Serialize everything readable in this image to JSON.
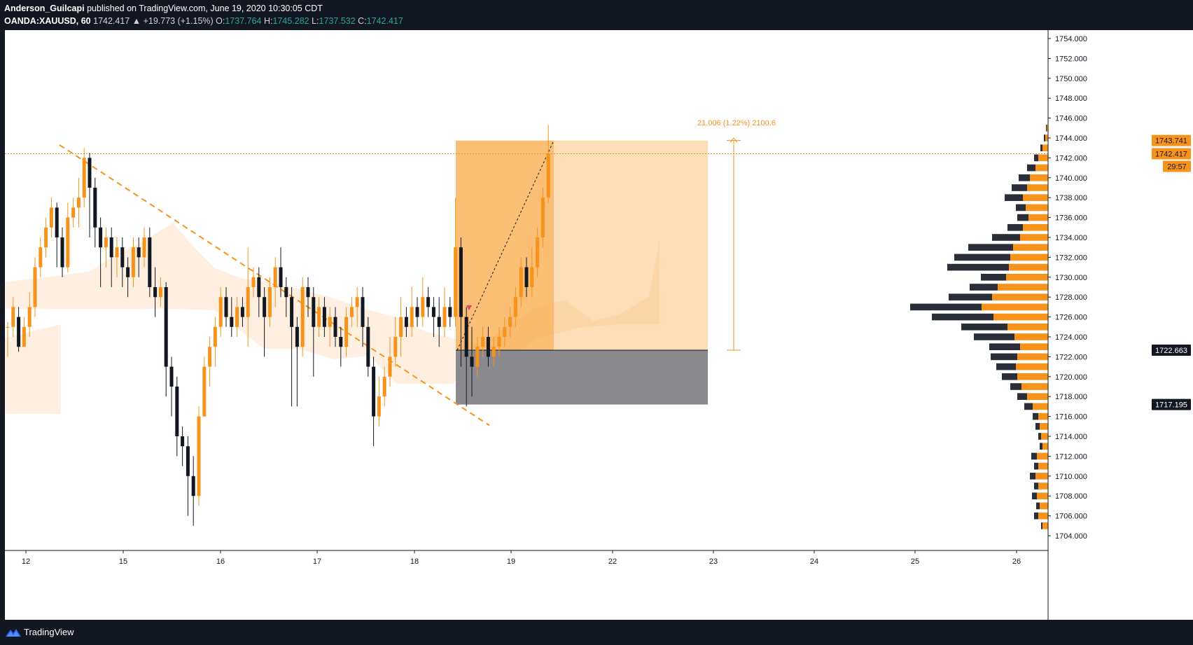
{
  "header": {
    "author": "Anderson_Guilcapi",
    "published_text": "published on TradingView.com, June 19, 2020 10:30:05 CDT",
    "symbol": "OANDA:XAUUSD, 60",
    "last": "1742.417",
    "change": "▲ +19.773 (+1.15%)",
    "o_label": "O:",
    "o_val": "1737.764",
    "h_label": "H:",
    "h_val": "1745.282",
    "l_label": "L:",
    "l_val": "1737.532",
    "c_label": "C:",
    "c_val": "1742.417"
  },
  "footer": {
    "brand": "TradingView"
  },
  "colors": {
    "up": "#f7931a",
    "down": "#131722",
    "accent": "#f7931a",
    "profile_up": "#f7931a",
    "profile_down": "#2a2e39",
    "stop_zone": "#8a8a8e",
    "target_zone": "#fbb660",
    "cloud": "#fde9d6"
  },
  "annotations": {
    "measure_text": "21.006 (1.22%) 2100.6",
    "price_tags": [
      {
        "text": "1743.741",
        "style": "orange"
      },
      {
        "text": "1742.417",
        "style": "orange"
      },
      {
        "text": "29:57",
        "style": "orange"
      },
      {
        "text": "1722.663",
        "style": "dark"
      },
      {
        "text": "1717.195",
        "style": "dark"
      }
    ]
  },
  "chart_data": {
    "type": "candlestick",
    "symbol": "OANDA:XAUUSD",
    "interval": "60",
    "y_range": [
      1703,
      1755
    ],
    "y_ticks": [
      "1704.000",
      "1706.000",
      "1708.000",
      "1710.000",
      "1712.000",
      "1714.000",
      "1716.000",
      "1718.000",
      "1720.000",
      "1722.000",
      "1724.000",
      "1726.000",
      "1728.000",
      "1730.000",
      "1732.000",
      "1734.000",
      "1736.000",
      "1738.000",
      "1740.000",
      "1742.000",
      "1744.000",
      "1746.000",
      "1748.000",
      "1750.000",
      "1752.000",
      "1754.000"
    ],
    "x_ticks": [
      "12",
      "15",
      "16",
      "17",
      "18",
      "19",
      "22",
      "23",
      "24",
      "25",
      "26"
    ],
    "candles": [
      [
        1725,
        1725,
        1725.5,
        1722
      ],
      [
        1725,
        1727,
        1728,
        1724
      ],
      [
        1726,
        1723,
        1727,
        1722.5
      ],
      [
        1723,
        1725,
        1726,
        1723
      ],
      [
        1725,
        1727,
        1728.5,
        1724
      ],
      [
        1727,
        1731,
        1732,
        1726
      ],
      [
        1731,
        1733,
        1734,
        1730
      ],
      [
        1733,
        1735,
        1736,
        1732
      ],
      [
        1735,
        1737,
        1738,
        1734
      ],
      [
        1737,
        1734,
        1737.5,
        1731
      ],
      [
        1734,
        1731,
        1735,
        1730
      ],
      [
        1731,
        1736,
        1737.5,
        1730.5
      ],
      [
        1736,
        1737,
        1738,
        1735
      ],
      [
        1737,
        1738,
        1740,
        1735
      ],
      [
        1738,
        1742,
        1743,
        1737
      ],
      [
        1742,
        1739,
        1742.5,
        1734
      ],
      [
        1739,
        1735,
        1740,
        1733
      ],
      [
        1735,
        1733,
        1736,
        1729
      ],
      [
        1733,
        1734,
        1735,
        1731
      ],
      [
        1734,
        1732,
        1735,
        1729
      ],
      [
        1732,
        1733,
        1734,
        1730
      ],
      [
        1733,
        1731,
        1734,
        1729
      ],
      [
        1731,
        1730,
        1732,
        1728
      ],
      [
        1730,
        1733,
        1734,
        1729
      ],
      [
        1733,
        1732,
        1734,
        1730
      ],
      [
        1732,
        1734,
        1735,
        1731
      ],
      [
        1734,
        1729,
        1735,
        1728
      ],
      [
        1729,
        1728,
        1731,
        1726
      ],
      [
        1728,
        1729,
        1730,
        1727
      ],
      [
        1729,
        1721,
        1729.5,
        1718
      ],
      [
        1721,
        1719,
        1722,
        1716
      ],
      [
        1719,
        1714,
        1720,
        1712
      ],
      [
        1714,
        1713,
        1715,
        1711
      ],
      [
        1713,
        1710,
        1714,
        1706
      ],
      [
        1710,
        1708,
        1712,
        1705
      ],
      [
        1708,
        1716,
        1717,
        1707
      ],
      [
        1716,
        1721,
        1722,
        1716
      ],
      [
        1721,
        1723,
        1724,
        1719
      ],
      [
        1723,
        1725,
        1726,
        1721
      ],
      [
        1725,
        1728,
        1729,
        1724
      ],
      [
        1728,
        1726,
        1729,
        1725
      ],
      [
        1726,
        1725,
        1728,
        1724
      ],
      [
        1725,
        1727,
        1728,
        1724
      ],
      [
        1727,
        1726,
        1728,
        1725
      ],
      [
        1726,
        1729,
        1733,
        1723
      ],
      [
        1729,
        1730,
        1731,
        1728
      ],
      [
        1730,
        1728,
        1731,
        1726
      ],
      [
        1728,
        1726,
        1729,
        1722
      ],
      [
        1726,
        1729,
        1730,
        1725
      ],
      [
        1729,
        1731,
        1732,
        1727
      ],
      [
        1731,
        1729,
        1733,
        1728
      ],
      [
        1729,
        1728,
        1730,
        1726
      ],
      [
        1728,
        1725,
        1729,
        1717
      ],
      [
        1725,
        1723,
        1726,
        1717
      ],
      [
        1723,
        1729,
        1730,
        1722
      ],
      [
        1729,
        1728,
        1730,
        1726
      ],
      [
        1728,
        1725,
        1729,
        1720
      ],
      [
        1725,
        1727,
        1728,
        1724
      ],
      [
        1727,
        1725,
        1728,
        1724
      ],
      [
        1725,
        1726,
        1727,
        1723
      ],
      [
        1726,
        1724,
        1727,
        1723
      ],
      [
        1724,
        1723,
        1725,
        1721
      ],
      [
        1723,
        1726,
        1727,
        1722
      ],
      [
        1726,
        1727,
        1728,
        1725
      ],
      [
        1727,
        1728,
        1729,
        1725
      ],
      [
        1728,
        1725,
        1729,
        1723
      ],
      [
        1725,
        1721,
        1726,
        1720
      ],
      [
        1721,
        1716,
        1722,
        1713
      ],
      [
        1716,
        1718,
        1720,
        1715
      ],
      [
        1718,
        1720,
        1721,
        1717
      ],
      [
        1720,
        1722,
        1724,
        1719
      ],
      [
        1722,
        1724,
        1726,
        1721
      ],
      [
        1724,
        1726,
        1728,
        1722
      ],
      [
        1726,
        1725,
        1727,
        1724
      ],
      [
        1725,
        1727,
        1729,
        1724
      ],
      [
        1727,
        1726,
        1728,
        1725
      ],
      [
        1726,
        1728,
        1730,
        1725
      ],
      [
        1728,
        1727,
        1729,
        1726
      ],
      [
        1727,
        1726,
        1728,
        1724
      ],
      [
        1726,
        1725,
        1728,
        1723
      ],
      [
        1725,
        1727,
        1729,
        1724
      ],
      [
        1727,
        1726,
        1728,
        1725
      ],
      [
        1726,
        1733,
        1738,
        1725
      ],
      [
        1733,
        1726,
        1734,
        1721
      ],
      [
        1726,
        1722,
        1727,
        1717
      ],
      [
        1722,
        1721,
        1725,
        1718
      ],
      [
        1721,
        1723,
        1724,
        1720
      ],
      [
        1723,
        1724,
        1725,
        1722
      ],
      [
        1724,
        1722,
        1725,
        1721
      ],
      [
        1722,
        1723,
        1724,
        1721
      ],
      [
        1723,
        1724,
        1725,
        1722
      ],
      [
        1724,
        1725,
        1726,
        1723
      ],
      [
        1725,
        1726,
        1727,
        1724
      ],
      [
        1726,
        1728,
        1729,
        1725
      ],
      [
        1728,
        1731,
        1732,
        1727
      ],
      [
        1731,
        1729,
        1732,
        1728
      ],
      [
        1729,
        1731,
        1733,
        1728
      ],
      [
        1731,
        1734,
        1735,
        1730
      ],
      [
        1734,
        1738,
        1739,
        1733
      ],
      [
        1738,
        1742.4,
        1745.3,
        1737.5
      ]
    ]
  }
}
